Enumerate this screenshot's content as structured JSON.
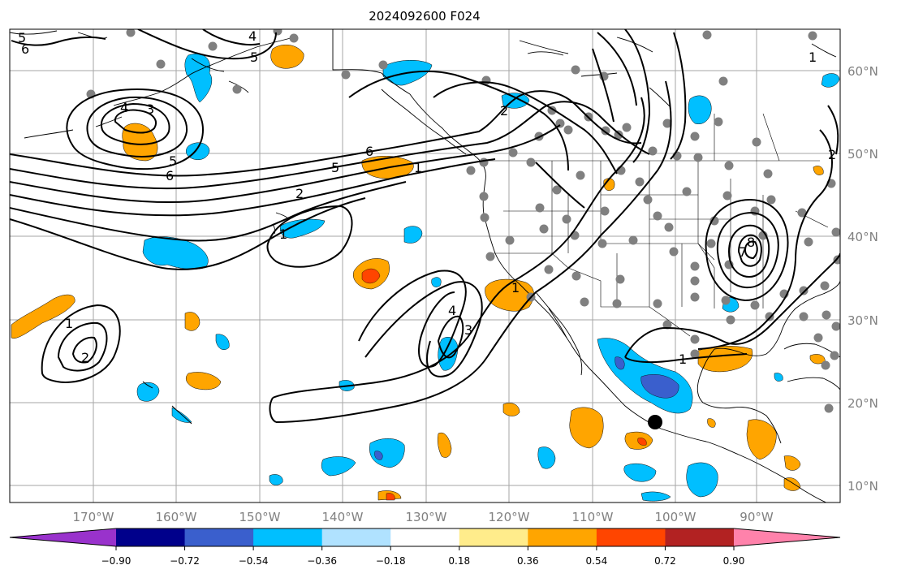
{
  "title": "2024092600 F024",
  "lon_labels": [
    "170°W",
    "160°W",
    "150°W",
    "140°W",
    "130°W",
    "120°W",
    "110°W",
    "100°W",
    "90°W"
  ],
  "lat_labels": [
    "60°N",
    "50°N",
    "40°N",
    "30°N",
    "20°N",
    "10°N"
  ],
  "colorbar": {
    "ticks": [
      "−0.90",
      "−0.72",
      "−0.54",
      "−0.36",
      "−0.18",
      "0.18",
      "0.36",
      "0.54",
      "0.72",
      "0.90"
    ],
    "colors": [
      "#9932cc",
      "#00008b",
      "#3a5fcd",
      "#00bfff",
      "#b0e2ff",
      "#ffffff",
      "#ffec8b",
      "#ffa500",
      "#ff4500",
      "#b22222",
      "#ff82ab"
    ]
  },
  "contour_labels": {
    "c1": "1",
    "c2": "2",
    "c3": "3",
    "c4": "4",
    "c5": "5",
    "c6": "6",
    "c7": "7",
    "c8": "8"
  },
  "colors": {
    "contour": "#000000",
    "station": "#808080",
    "grid": "#a6a6a6"
  }
}
